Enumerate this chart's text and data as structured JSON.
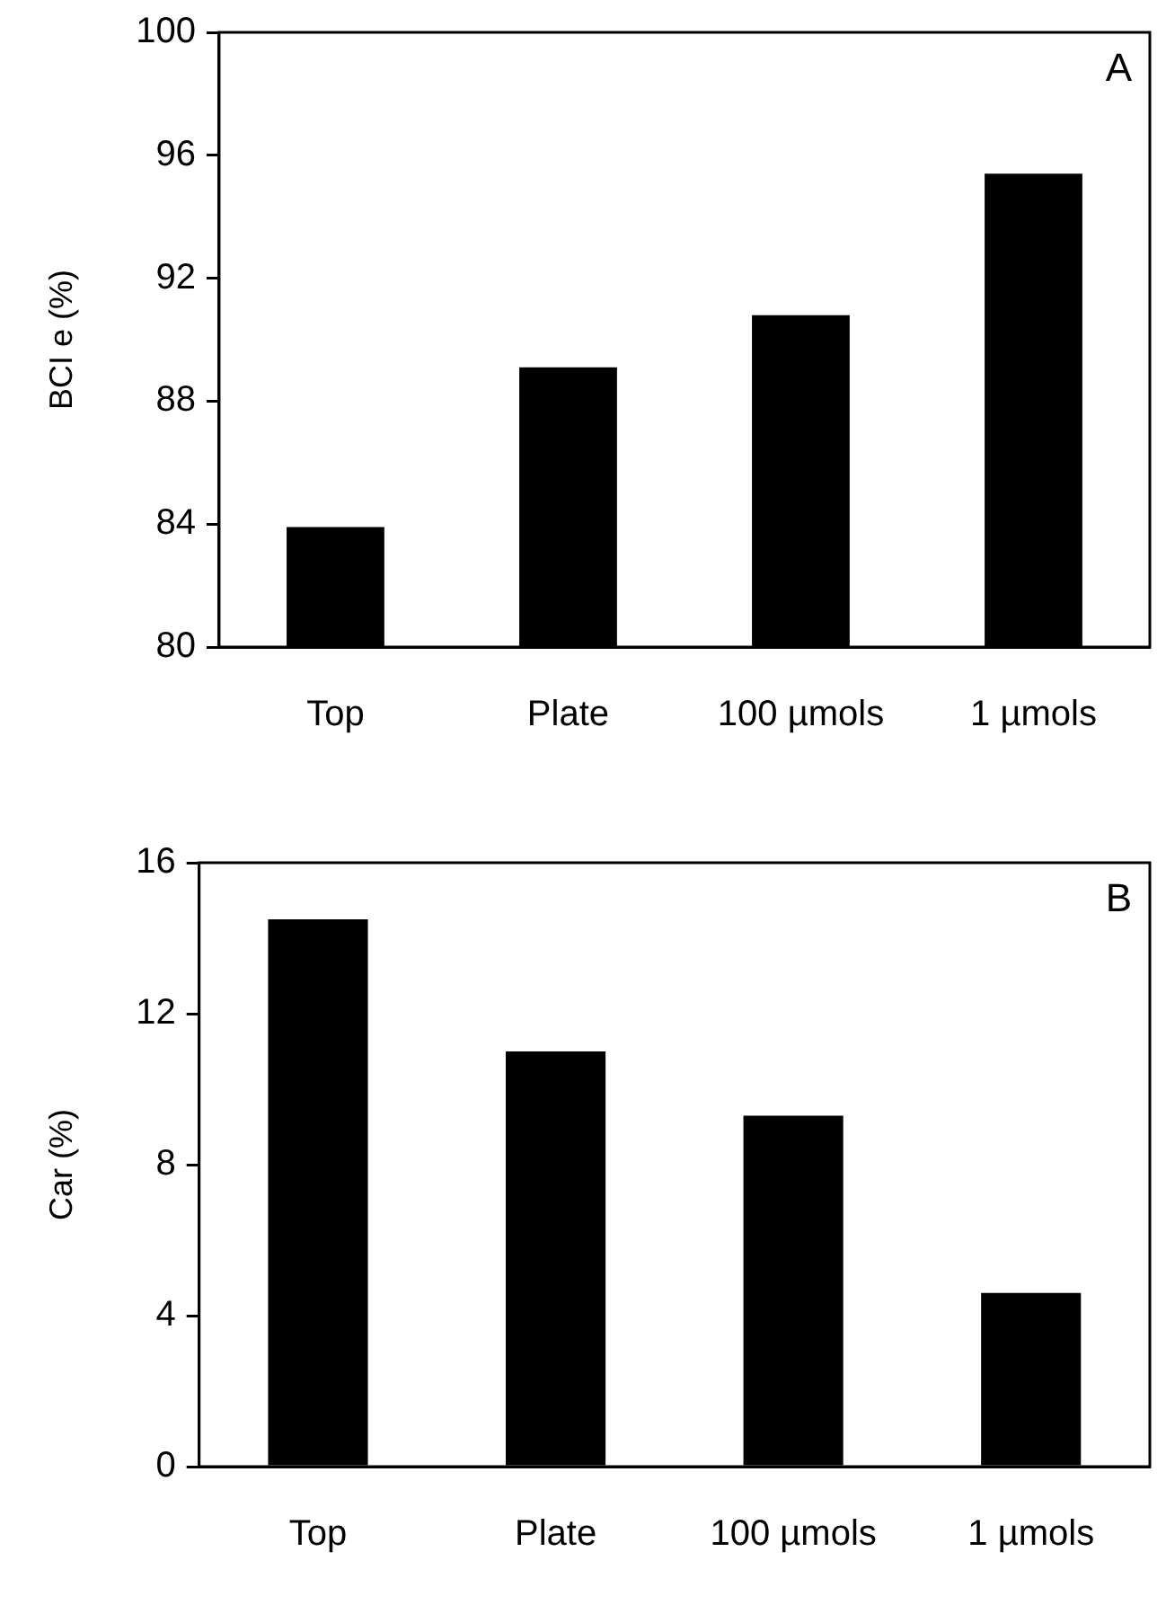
{
  "chart_data": [
    {
      "type": "bar",
      "ylabel": "BCI e (%)",
      "categories": [
        "Top",
        "Plate",
        "100 µmols",
        "1 µmols"
      ],
      "values": [
        83.9,
        89.1,
        90.8,
        95.4
      ],
      "color": "#000000",
      "ylim": [
        80,
        100
      ],
      "yticks": [
        80,
        84,
        88,
        92,
        96,
        100
      ],
      "grid": false,
      "legend": false,
      "annotations": [
        "A"
      ]
    },
    {
      "type": "bar",
      "ylabel": "Car (%)",
      "categories": [
        "Top",
        "Plate",
        "100 µmols",
        "1 µmols"
      ],
      "values": [
        14.5,
        11.0,
        9.3,
        4.6
      ],
      "color": "#000000",
      "ylim": [
        0,
        16
      ],
      "yticks": [
        0,
        4,
        8,
        12,
        16
      ],
      "grid": false,
      "legend": false,
      "annotations": [
        "B"
      ]
    }
  ]
}
